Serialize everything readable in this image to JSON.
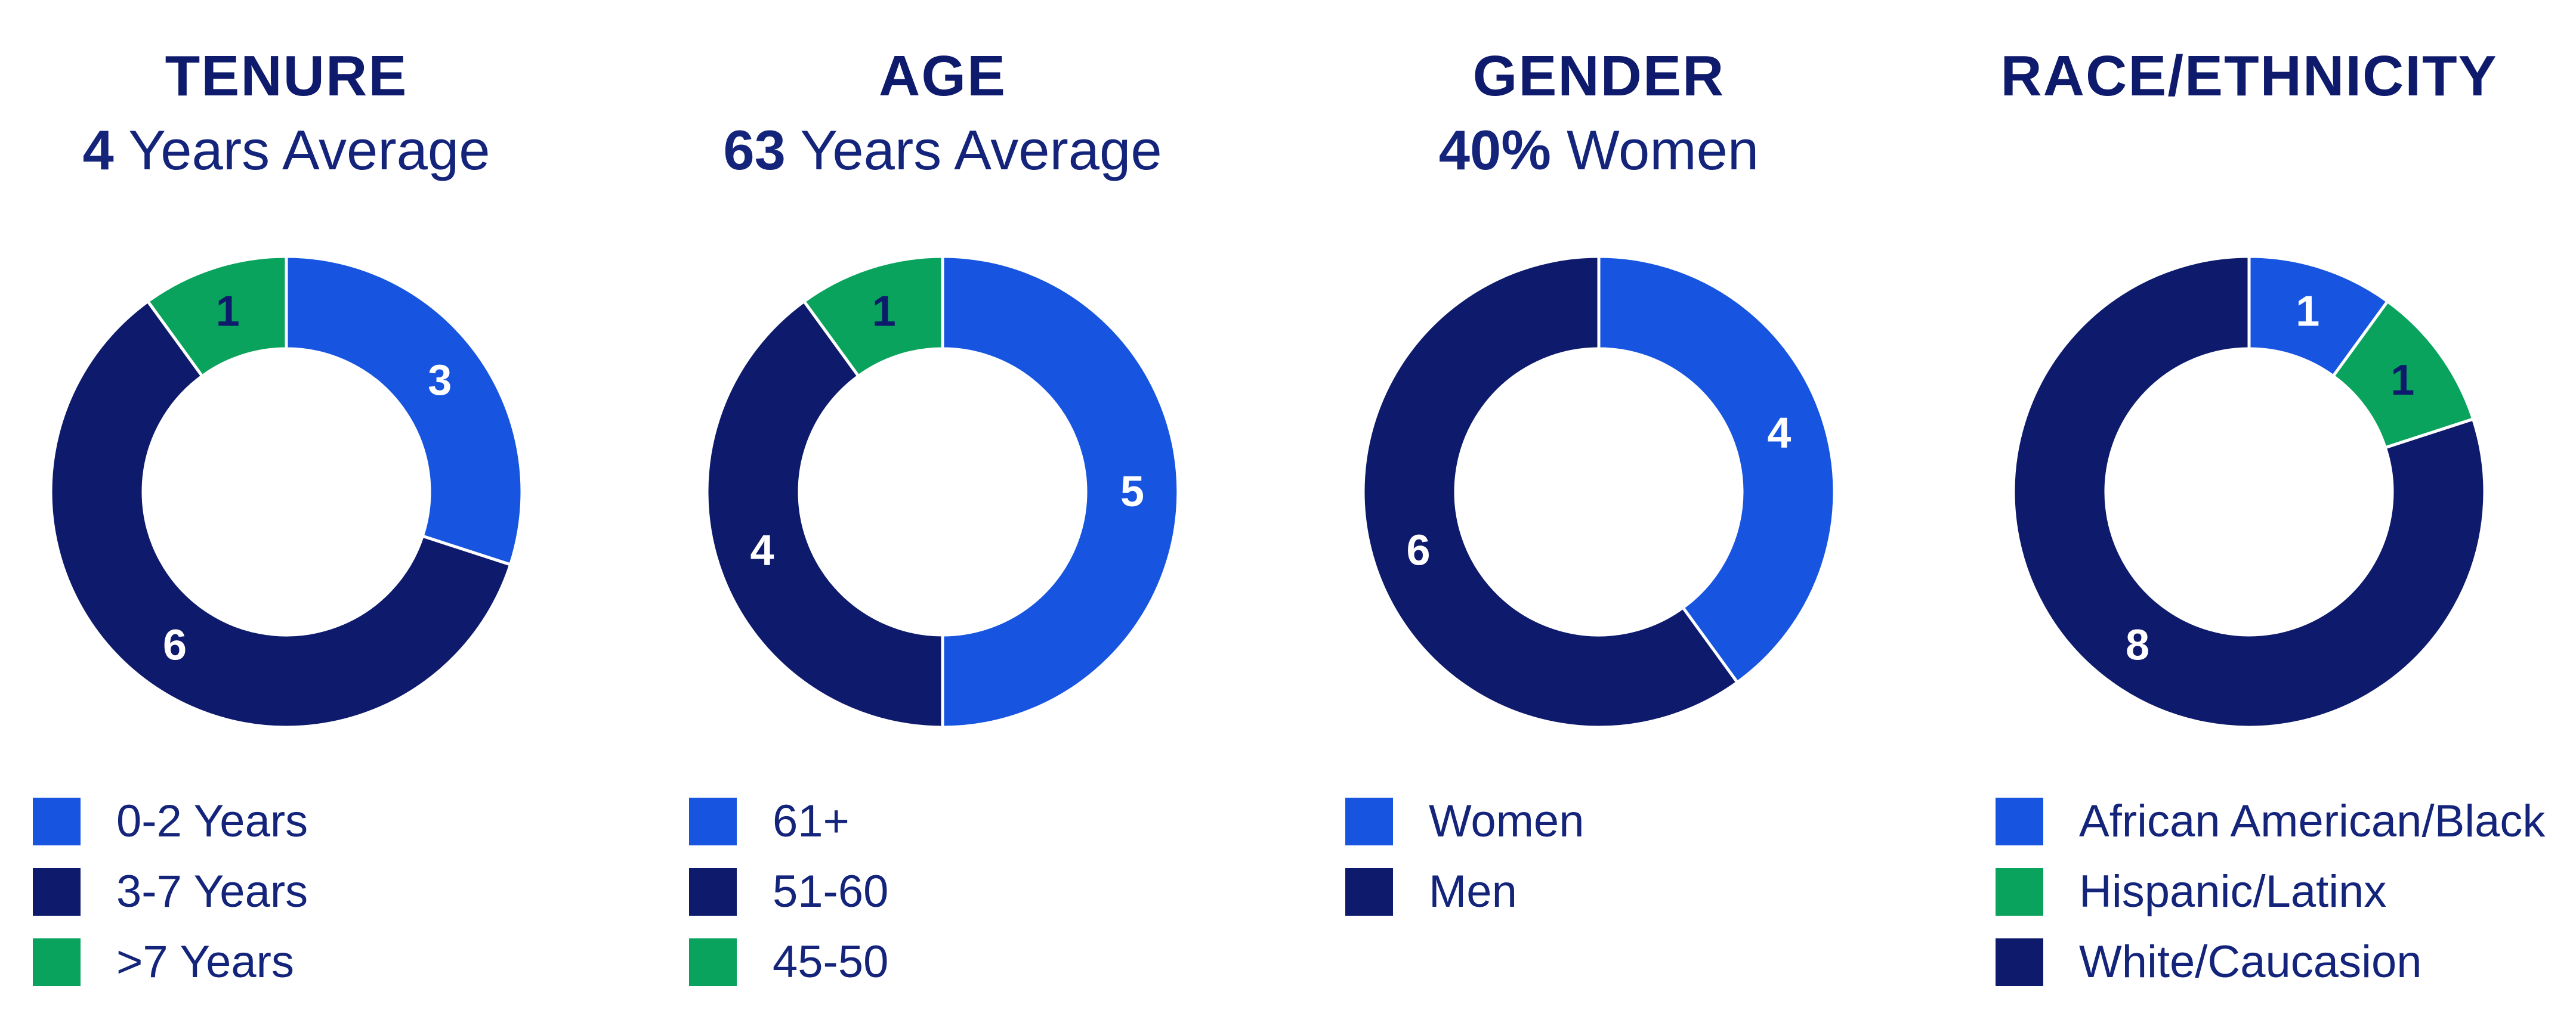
{
  "colors": {
    "light_blue": "#1755e0",
    "navy": "#0e1a6b",
    "green": "#0aa35d"
  },
  "chart_data": [
    {
      "type": "pie",
      "title": "TENURE",
      "subtitle_value": "4",
      "subtitle_text": " Years Average",
      "slices": [
        {
          "label": "0-2 Years",
          "value": 3,
          "color": "#1755e0",
          "text_color": "#ffffff"
        },
        {
          "label": "3-7 Years",
          "value": 6,
          "color": "#0e1a6b",
          "text_color": "#ffffff"
        },
        {
          "label": ">7 Years",
          "value": 1,
          "color": "#0aa35d",
          "text_color": "#0e1a6b"
        }
      ],
      "legend": [
        {
          "label": "0-2 Years",
          "color": "#1755e0"
        },
        {
          "label": "3-7 Years",
          "color": "#0e1a6b"
        },
        {
          "label": ">7 Years",
          "color": "#0aa35d"
        }
      ]
    },
    {
      "type": "pie",
      "title": "AGE",
      "subtitle_value": "63",
      "subtitle_text": " Years Average",
      "slices": [
        {
          "label": "61+",
          "value": 5,
          "color": "#1755e0",
          "text_color": "#ffffff"
        },
        {
          "label": "51-60",
          "value": 4,
          "color": "#0e1a6b",
          "text_color": "#ffffff"
        },
        {
          "label": "45-50",
          "value": 1,
          "color": "#0aa35d",
          "text_color": "#0e1a6b"
        }
      ],
      "legend": [
        {
          "label": "61+",
          "color": "#1755e0"
        },
        {
          "label": "51-60",
          "color": "#0e1a6b"
        },
        {
          "label": "45-50",
          "color": "#0aa35d"
        }
      ]
    },
    {
      "type": "pie",
      "title": "GENDER",
      "subtitle_value": "40%",
      "subtitle_text": " Women",
      "slices": [
        {
          "label": "Women",
          "value": 4,
          "color": "#1755e0",
          "text_color": "#ffffff"
        },
        {
          "label": "Men",
          "value": 6,
          "color": "#0e1a6b",
          "text_color": "#ffffff"
        }
      ],
      "legend": [
        {
          "label": "Women",
          "color": "#1755e0"
        },
        {
          "label": "Men",
          "color": "#0e1a6b"
        }
      ]
    },
    {
      "type": "pie",
      "title": "RACE/ETHNICITY",
      "subtitle_value": "",
      "subtitle_text": "",
      "slices": [
        {
          "label": "African American/Black",
          "value": 1,
          "color": "#1755e0",
          "text_color": "#ffffff"
        },
        {
          "label": "Hispanic/Latinx",
          "value": 1,
          "color": "#0aa35d",
          "text_color": "#0e1a6b"
        },
        {
          "label": "White/Caucasion",
          "value": 8,
          "color": "#0e1a6b",
          "text_color": "#ffffff"
        }
      ],
      "legend": [
        {
          "label": "African American/Black",
          "color": "#1755e0"
        },
        {
          "label": "Hispanic/Latinx",
          "color": "#0aa35d"
        },
        {
          "label": "White/Caucasion",
          "color": "#0e1a6b"
        }
      ]
    }
  ]
}
